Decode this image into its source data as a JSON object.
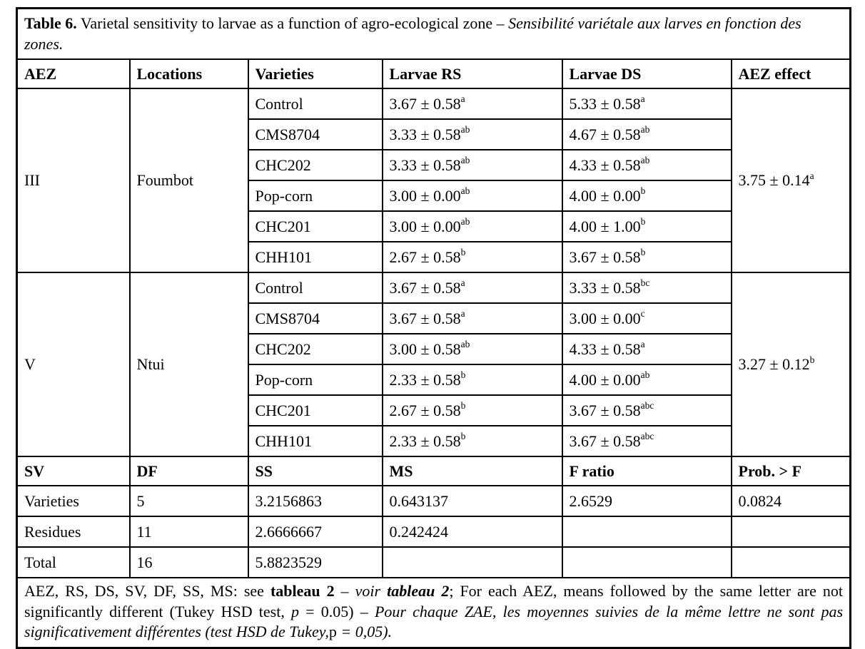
{
  "caption": {
    "label": "Table 6.",
    "text_en": " Varietal sensitivity to larvae as a function of agro-ecological zone – ",
    "text_fr": "Sensibilité variétale aux larves en fonction des zones."
  },
  "columns": [
    "AEZ",
    "Locations",
    "Varieties",
    "Larvae RS",
    "Larvae DS",
    "AEZ effect"
  ],
  "sections": [
    {
      "aez": "III",
      "location": "Foumbot",
      "aez_effect": {
        "value": "3.75 ± 0.14",
        "sup": "a"
      },
      "rows": [
        {
          "variety": "Control",
          "rs": "3.67 ± 0.58",
          "rs_sup": "a",
          "ds": "5.33 ± 0.58",
          "ds_sup": "a"
        },
        {
          "variety": "CMS8704",
          "rs": "3.33 ± 0.58",
          "rs_sup": "ab",
          "ds": "4.67 ± 0.58",
          "ds_sup": "ab"
        },
        {
          "variety": "CHC202",
          "rs": "3.33 ± 0.58",
          "rs_sup": "ab",
          "ds": "4.33 ± 0.58",
          "ds_sup": "ab"
        },
        {
          "variety": "Pop-corn",
          "rs": "3.00 ± 0.00",
          "rs_sup": "ab",
          "ds": "4.00 ± 0.00",
          "ds_sup": "b"
        },
        {
          "variety": "CHC201",
          "rs": "3.00 ± 0.00",
          "rs_sup": "ab",
          "ds": "4.00 ± 1.00",
          "ds_sup": "b"
        },
        {
          "variety": "CHH101",
          "rs": "2.67 ± 0.58",
          "rs_sup": "b",
          "ds": "3.67 ± 0.58",
          "ds_sup": "b"
        }
      ]
    },
    {
      "aez": "V",
      "location": "Ntui",
      "aez_effect": {
        "value": "3.27 ± 0.12",
        "sup": "b"
      },
      "rows": [
        {
          "variety": "Control",
          "rs": "3.67 ± 0.58",
          "rs_sup": "a",
          "ds": "3.33 ± 0.58",
          "ds_sup": "bc"
        },
        {
          "variety": "CMS8704",
          "rs": "3.67 ± 0.58",
          "rs_sup": "a",
          "ds": "3.00 ± 0.00",
          "ds_sup": "c"
        },
        {
          "variety": "CHC202",
          "rs": "3.00 ± 0.58",
          "rs_sup": "ab",
          "ds": "4.33 ± 0.58",
          "ds_sup": "a"
        },
        {
          "variety": "Pop-corn",
          "rs": "2.33 ± 0.58",
          "rs_sup": "b",
          "ds": "4.00 ± 0.00",
          "ds_sup": "ab"
        },
        {
          "variety": "CHC201",
          "rs": "2.67 ± 0.58",
          "rs_sup": "b",
          "ds": "3.67 ± 0.58",
          "ds_sup": "abc"
        },
        {
          "variety": "CHH101",
          "rs": "2.33 ± 0.58",
          "rs_sup": "b",
          "ds": "3.67 ± 0.58",
          "ds_sup": "abc"
        }
      ]
    }
  ],
  "anova": {
    "columns": [
      "SV",
      "DF",
      "SS",
      "MS",
      "F ratio",
      "Prob. > F"
    ],
    "rows": [
      {
        "sv": "Varieties",
        "df": "5",
        "ss": "3.2156863",
        "ms": "0.643137",
        "f": "2.6529",
        "prob": "0.0824"
      },
      {
        "sv": "Residues",
        "df": "11",
        "ss": "2.6666667",
        "ms": "0.242424",
        "f": "",
        "prob": ""
      },
      {
        "sv": "Total",
        "df": "16",
        "ss": "5.8823529",
        "ms": "",
        "f": "",
        "prob": ""
      }
    ]
  },
  "footnote": {
    "segments": [
      {
        "text": "AEZ, RS, DS, SV, DF, SS, MS: see "
      },
      {
        "text": "tableau 2",
        "bold": true
      },
      {
        "text": " – "
      },
      {
        "text": "voir ",
        "italic": true
      },
      {
        "text": "tableau 2",
        "bold": true,
        "italic": true
      },
      {
        "text": "; For each AEZ, means followed by the same letter are not significantly different (Tukey HSD test, "
      },
      {
        "text": "p",
        "italic": true
      },
      {
        "text": " = 0.05) – "
      },
      {
        "text": "Pour chaque ZAE, les moyennes suivies de la même lettre ne sont pas significativement différentes (test HSD de Tukey,",
        "italic": true
      },
      {
        "text": "p "
      },
      {
        "text": "= 0,05).",
        "italic": true
      }
    ]
  }
}
